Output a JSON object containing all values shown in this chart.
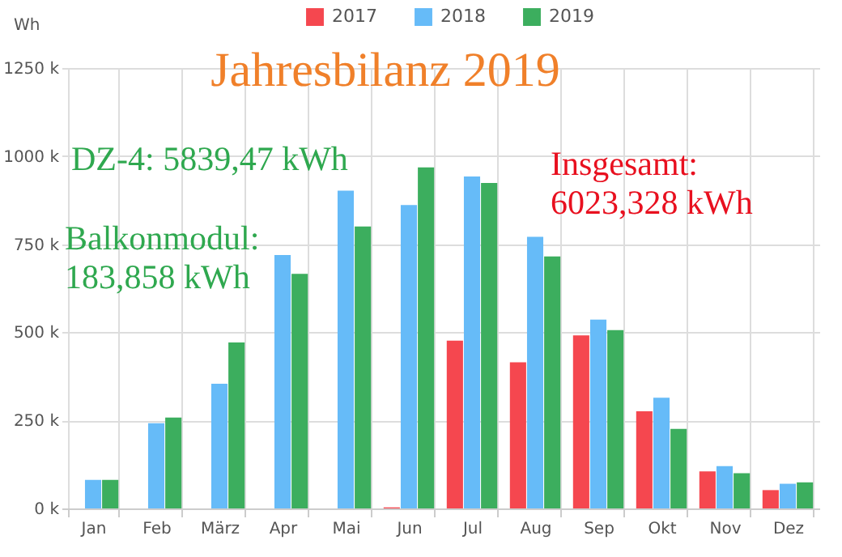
{
  "chart_data": {
    "type": "bar",
    "title": "Jahresbilanz 2019",
    "ylabel": "Wh",
    "categories": [
      "Jan",
      "Feb",
      "März",
      "Apr",
      "Mai",
      "Jun",
      "Jul",
      "Aug",
      "Sep",
      "Okt",
      "Nov",
      "Dez"
    ],
    "series": [
      {
        "name": "2017",
        "color": "#f5474f",
        "values": [
          null,
          null,
          null,
          null,
          null,
          3000,
          476000,
          415000,
          491000,
          276000,
          105000,
          52000
        ]
      },
      {
        "name": "2018",
        "color": "#66bbf8",
        "values": [
          81000,
          242000,
          354000,
          719000,
          902000,
          861000,
          942000,
          771000,
          536000,
          314000,
          120000,
          70000
        ]
      },
      {
        "name": "2019",
        "color": "#3cae5e",
        "values": [
          81000,
          258000,
          471000,
          666000,
          800000,
          968000,
          924000,
          715000,
          506000,
          226000,
          100000,
          74000
        ]
      }
    ],
    "ylim": [
      0,
      1250000
    ],
    "yticks": [
      {
        "value": 0,
        "label": "0 k"
      },
      {
        "value": 250000,
        "label": "250 k"
      },
      {
        "value": 500000,
        "label": "500 k"
      },
      {
        "value": 750000,
        "label": "750 k"
      },
      {
        "value": 1000000,
        "label": "1000 k"
      },
      {
        "value": 1250000,
        "label": "1250 k"
      }
    ],
    "grid": true,
    "legend": "top",
    "annotations": [
      "DZ-4: 5839,47 kWh",
      "Balkonmodul: 183,858 kWh",
      "Insgesamt: 6023,328 kWh"
    ]
  }
}
